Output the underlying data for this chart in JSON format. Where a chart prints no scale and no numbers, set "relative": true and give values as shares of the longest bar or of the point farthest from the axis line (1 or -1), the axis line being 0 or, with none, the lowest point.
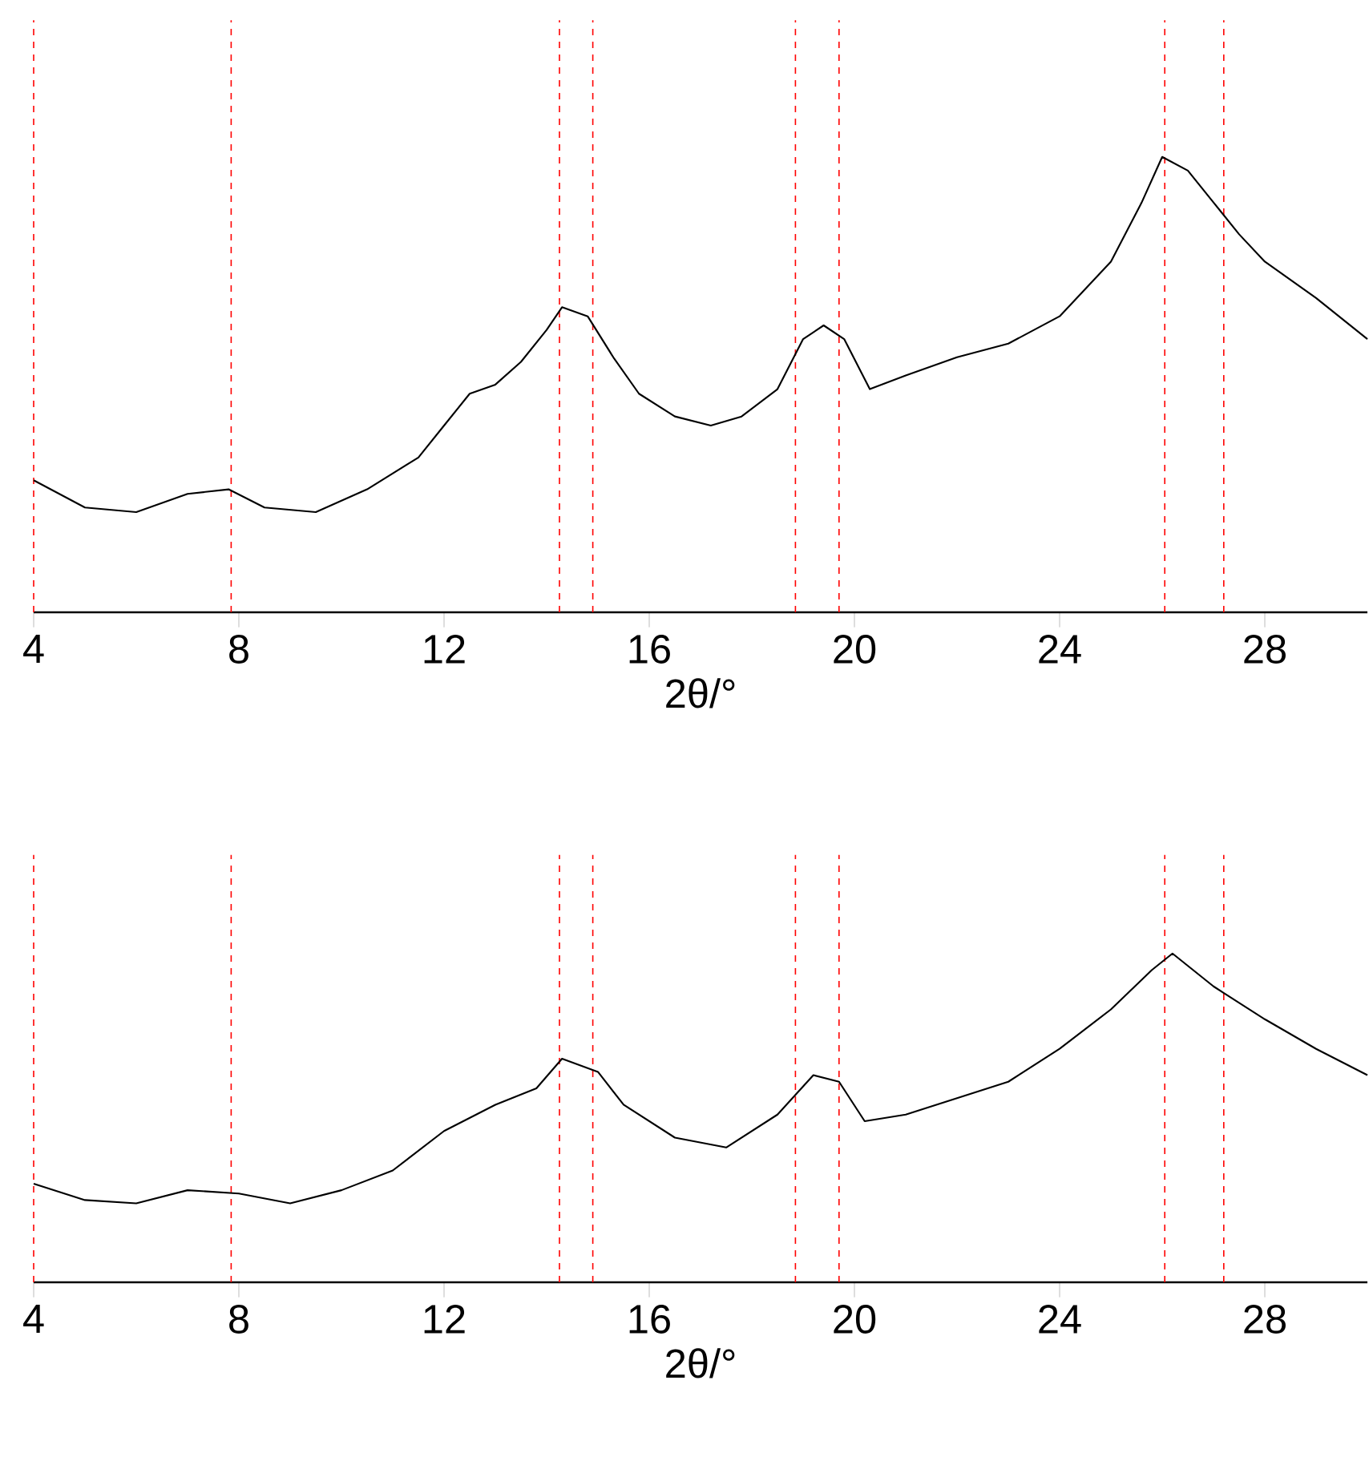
{
  "chart_data": [
    {
      "type": "line",
      "relative": true,
      "xlabel": "2θ/°",
      "xlim": [
        4,
        30
      ],
      "xticks": [
        4,
        8,
        12,
        16,
        20,
        24,
        28
      ],
      "color": "#000000",
      "x": [
        4,
        5,
        6,
        7,
        7.8,
        8.5,
        9.5,
        10.5,
        11.5,
        12,
        12.5,
        13,
        13.5,
        14,
        14.3,
        14.8,
        15.3,
        15.8,
        16.5,
        17.2,
        17.8,
        18.5,
        19,
        19.4,
        19.8,
        20.3,
        21,
        22,
        23,
        24,
        25,
        25.6,
        26,
        26.5,
        27,
        27.5,
        28,
        29,
        30
      ],
      "values": [
        0.29,
        0.23,
        0.22,
        0.26,
        0.27,
        0.23,
        0.22,
        0.27,
        0.34,
        0.41,
        0.48,
        0.5,
        0.55,
        0.62,
        0.67,
        0.65,
        0.56,
        0.48,
        0.43,
        0.41,
        0.43,
        0.49,
        0.6,
        0.63,
        0.6,
        0.49,
        0.52,
        0.56,
        0.59,
        0.65,
        0.77,
        0.9,
        1,
        0.97,
        0.9,
        0.83,
        0.77,
        0.69,
        0.6
      ],
      "ref_lines": [
        {
          "axis": "x",
          "value": 4,
          "color": "#ff0000",
          "line_style": "dashed"
        },
        {
          "axis": "x",
          "value": 7.85,
          "color": "#ff0000",
          "line_style": "dashed"
        },
        {
          "axis": "x",
          "value": 14.25,
          "color": "#ff0000",
          "line_style": "dashed"
        },
        {
          "axis": "x",
          "value": 14.9,
          "color": "#ff0000",
          "line_style": "dashed"
        },
        {
          "axis": "x",
          "value": 18.85,
          "color": "#ff0000",
          "line_style": "dashed"
        },
        {
          "axis": "x",
          "value": 19.7,
          "color": "#ff0000",
          "line_style": "dashed"
        },
        {
          "axis": "x",
          "value": 26.05,
          "color": "#ff0000",
          "line_style": "dashed"
        },
        {
          "axis": "x",
          "value": 27.2,
          "color": "#ff0000",
          "line_style": "dashed"
        }
      ]
    },
    {
      "type": "line",
      "relative": true,
      "xlabel": "2θ/°",
      "xlim": [
        4,
        30
      ],
      "xticks": [
        4,
        8,
        12,
        16,
        20,
        24,
        28
      ],
      "color": "#000000",
      "x": [
        4,
        5,
        6,
        7,
        8,
        9,
        10,
        11,
        12,
        13,
        13.8,
        14.3,
        15,
        15.5,
        16.5,
        17.5,
        18.5,
        19.2,
        19.7,
        20.2,
        21,
        22,
        23,
        24,
        25,
        25.8,
        26.2,
        27,
        28,
        29,
        30
      ],
      "values": [
        0.3,
        0.25,
        0.24,
        0.28,
        0.27,
        0.24,
        0.28,
        0.34,
        0.46,
        0.54,
        0.59,
        0.68,
        0.64,
        0.54,
        0.44,
        0.41,
        0.51,
        0.63,
        0.61,
        0.49,
        0.51,
        0.56,
        0.61,
        0.71,
        0.83,
        0.95,
        1,
        0.9,
        0.8,
        0.71,
        0.63
      ],
      "ref_lines": [
        {
          "axis": "x",
          "value": 4,
          "color": "#ff0000",
          "line_style": "dashed"
        },
        {
          "axis": "x",
          "value": 7.85,
          "color": "#ff0000",
          "line_style": "dashed"
        },
        {
          "axis": "x",
          "value": 14.25,
          "color": "#ff0000",
          "line_style": "dashed"
        },
        {
          "axis": "x",
          "value": 14.9,
          "color": "#ff0000",
          "line_style": "dashed"
        },
        {
          "axis": "x",
          "value": 18.85,
          "color": "#ff0000",
          "line_style": "dashed"
        },
        {
          "axis": "x",
          "value": 19.7,
          "color": "#ff0000",
          "line_style": "dashed"
        },
        {
          "axis": "x",
          "value": 26.05,
          "color": "#ff0000",
          "line_style": "dashed"
        },
        {
          "axis": "x",
          "value": 27.2,
          "color": "#ff0000",
          "line_style": "dashed"
        }
      ]
    }
  ]
}
